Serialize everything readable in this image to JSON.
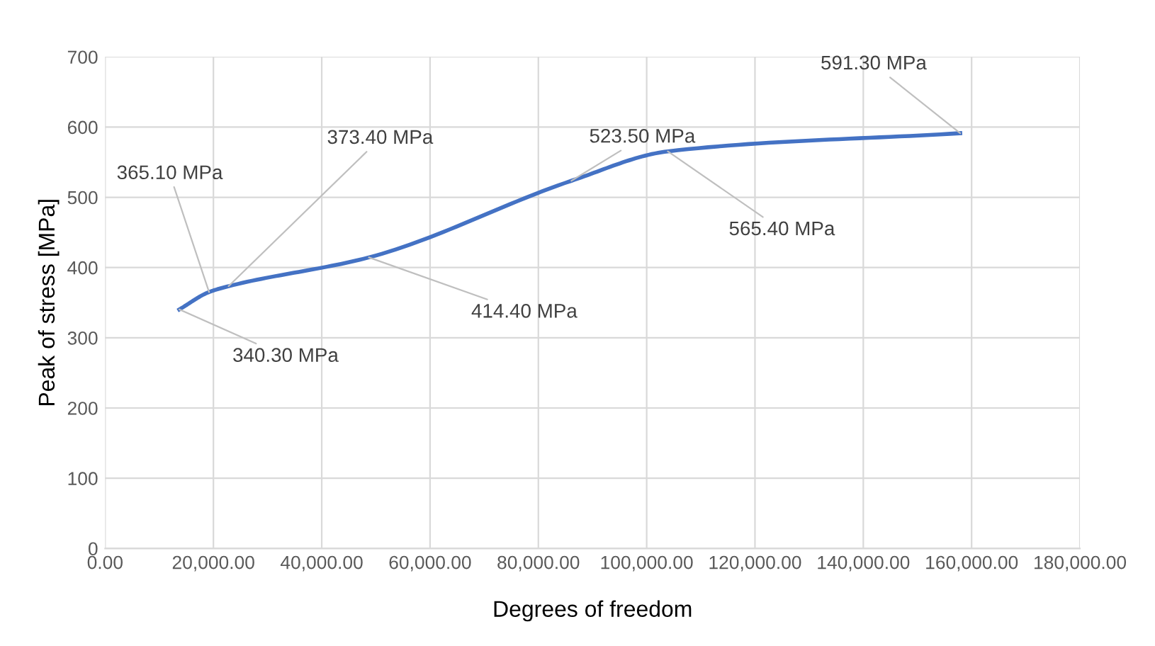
{
  "chart_data": {
    "type": "line",
    "xlabel": "Degrees of freedom",
    "ylabel": "Peak of stress [MPa]",
    "x": [
      13700,
      19200,
      22800,
      48700,
      86100,
      103900,
      157900
    ],
    "series": [
      {
        "color": "#4472c4",
        "values": [
          340.3,
          365.1,
          373.4,
          414.4,
          523.5,
          565.4,
          591.3
        ]
      }
    ],
    "xlim": [
      0,
      180000
    ],
    "xticks": [
      {
        "value": 0,
        "label": "0.00"
      },
      {
        "value": 20000,
        "label": "20,000.00"
      },
      {
        "value": 40000,
        "label": "40,000.00"
      },
      {
        "value": 60000,
        "label": "60,000.00"
      },
      {
        "value": 80000,
        "label": "80,000.00"
      },
      {
        "value": 100000,
        "label": "100,000.00"
      },
      {
        "value": 120000,
        "label": "120,000.00"
      },
      {
        "value": 140000,
        "label": "140,000.00"
      },
      {
        "value": 160000,
        "label": "160,000.00"
      },
      {
        "value": 180000,
        "label": "180,000.00"
      }
    ],
    "ylim": [
      0,
      700
    ],
    "yticks": [
      0,
      100,
      200,
      300,
      400,
      500,
      600,
      700
    ],
    "grid": true,
    "marker": "none",
    "line_style": "solid",
    "annotations": [
      {
        "text": "340.30 MPa",
        "x": 13700,
        "y": 340.3
      },
      {
        "text": "365.10 MPa",
        "x": 19200,
        "y": 365.1
      },
      {
        "text": "373.40 MPa",
        "x": 22800,
        "y": 373.4
      },
      {
        "text": "414.40 MPa",
        "x": 48700,
        "y": 414.4
      },
      {
        "text": "523.50 MPa",
        "x": 86100,
        "y": 523.5
      },
      {
        "text": "565.40 MPa",
        "x": 103900,
        "y": 565.4
      },
      {
        "text": "591.30 MPa",
        "x": 157900,
        "y": 591.3
      }
    ]
  }
}
